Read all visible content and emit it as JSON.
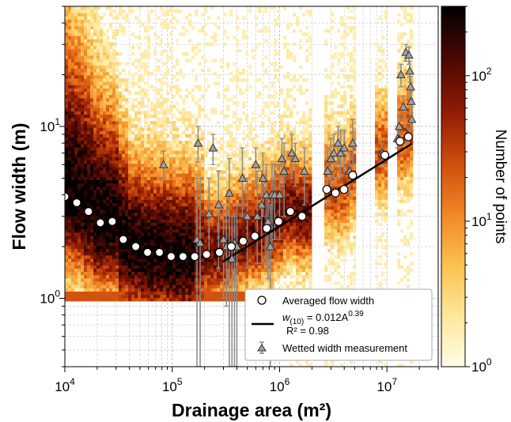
{
  "chart_data": {
    "type": "scatter",
    "xlabel": "Drainage area (m²)",
    "ylabel": "Flow width (m)",
    "x_scale": "log",
    "y_scale": "log",
    "xlim": [
      10000,
      30000000
    ],
    "ylim": [
      0.4,
      50
    ],
    "grid": true,
    "x_ticks": [
      {
        "value": 10000,
        "base": "10",
        "exp": "4"
      },
      {
        "value": 100000,
        "base": "10",
        "exp": "5"
      },
      {
        "value": 1000000,
        "base": "10",
        "exp": "6"
      },
      {
        "value": 10000000,
        "base": "10",
        "exp": "7"
      }
    ],
    "y_ticks": [
      {
        "value": 1,
        "base": "10",
        "exp": "0"
      },
      {
        "value": 10,
        "base": "10",
        "exp": "1"
      }
    ],
    "colorbar": {
      "label": "Number of points",
      "scale": "log",
      "range": [
        1,
        300
      ],
      "colors": [
        "#fffde6",
        "#fde79a",
        "#fbbf4f",
        "#f18424",
        "#cc4a0c",
        "#8c1a04",
        "#4a0802",
        "#000000"
      ],
      "ticks": [
        {
          "value": 1,
          "base": "10",
          "exp": "0"
        },
        {
          "value": 10,
          "base": "10",
          "exp": "1"
        },
        {
          "value": 100,
          "base": "10",
          "exp": "2"
        }
      ]
    },
    "series": [
      {
        "name": "Averaged flow width",
        "marker": "circle",
        "points": [
          [
            10000,
            3.9
          ],
          [
            12900,
            3.6
          ],
          [
            16600,
            3.2
          ],
          [
            21400,
            2.75
          ],
          [
            27600,
            2.8
          ],
          [
            35000,
            2.2
          ],
          [
            45700,
            2.0
          ],
          [
            58900,
            1.85
          ],
          [
            76000,
            1.85
          ],
          [
            97700,
            1.75
          ],
          [
            126000,
            1.75
          ],
          [
            162000,
            1.75
          ],
          [
            209000,
            1.8
          ],
          [
            275000,
            1.85
          ],
          [
            355000,
            2.0
          ],
          [
            457000,
            2.15
          ],
          [
            589000,
            2.3
          ],
          [
            759000,
            2.55
          ],
          [
            977000,
            2.8
          ],
          [
            1260000,
            3.2
          ],
          [
            1620000,
            3.0
          ],
          [
            2750000,
            4.3
          ],
          [
            3310000,
            4.1
          ],
          [
            3980000,
            4.3
          ],
          [
            4790000,
            5.2
          ],
          [
            9550000,
            6.8
          ],
          [
            13200000,
            8.2
          ],
          [
            15800000,
            8.7
          ]
        ]
      },
      {
        "name": "Wetted width measurement",
        "marker": "triangle",
        "points": [
          [
            83000,
            6.0,
            5.0,
            7.2
          ],
          [
            170000,
            2.2,
            0.4,
            5.0
          ],
          [
            174000,
            8.0,
            6.2,
            10.0
          ],
          [
            182000,
            2.1,
            0.4,
            5.0
          ],
          [
            220000,
            3.1,
            1.8,
            5.0
          ],
          [
            240000,
            7.5,
            6.0,
            9.0
          ],
          [
            270000,
            3.5,
            1.5,
            5.5
          ],
          [
            300000,
            2.2,
            1.0,
            3.5
          ],
          [
            320000,
            2.0,
            0.9,
            3.2
          ],
          [
            340000,
            4.1,
            0.4,
            6.5
          ],
          [
            360000,
            1.7,
            0.4,
            3.0
          ],
          [
            380000,
            2.1,
            0.4,
            3.0
          ],
          [
            400000,
            2.0,
            0.4,
            3.5
          ],
          [
            450000,
            5.0,
            3.0,
            7.5
          ],
          [
            500000,
            3.0,
            1.5,
            5.0
          ],
          [
            600000,
            6.0,
            4.5,
            7.5
          ],
          [
            620000,
            3.0,
            1.6,
            5.5
          ],
          [
            680000,
            3.5,
            1.6,
            5.5
          ],
          [
            700000,
            5.0,
            3.0,
            7.0
          ],
          [
            750000,
            4.0,
            1.5,
            6.0
          ],
          [
            780000,
            2.8,
            1.3,
            4.0
          ],
          [
            820000,
            2.0,
            0.4,
            3.5
          ],
          [
            850000,
            4.0,
            2.0,
            6.0
          ],
          [
            900000,
            4.0,
            2.2,
            6.0
          ],
          [
            1000000,
            4.0,
            2.2,
            6.0
          ],
          [
            1050000,
            6.5,
            4.5,
            8.5
          ],
          [
            1100000,
            5.5,
            3.0,
            8.0
          ],
          [
            1300000,
            7.0,
            5.0,
            9.0
          ],
          [
            1400000,
            6.5,
            4.5,
            8.0
          ],
          [
            1700000,
            5.5,
            3.5,
            7.5
          ],
          [
            2800000,
            5.5,
            3.5,
            7.5
          ],
          [
            3000000,
            6.5,
            4.5,
            8.5
          ],
          [
            3200000,
            7.0,
            5.0,
            9.0
          ],
          [
            3500000,
            8.0,
            6.0,
            10.0
          ],
          [
            3700000,
            7.0,
            5.0,
            9.5
          ],
          [
            4000000,
            7.5,
            5.5,
            9.5
          ],
          [
            4500000,
            5.5,
            4.0,
            7.0
          ],
          [
            4800000,
            8.0,
            6.0,
            11.0
          ],
          [
            9000000,
            7.0,
            6.0,
            8.0
          ],
          [
            12500000,
            8.5,
            7.5,
            10.0
          ],
          [
            13000000,
            10.0,
            9.0,
            11.5
          ],
          [
            13500000,
            20.0,
            17.0,
            23.0
          ],
          [
            14200000,
            13.0,
            11.0,
            15.0
          ],
          [
            15000000,
            27.0,
            24.0,
            30.0
          ],
          [
            15500000,
            9.0,
            8.0,
            10.0
          ],
          [
            16000000,
            26.0,
            23.0,
            29.0
          ],
          [
            16300000,
            21.0,
            18.0,
            24.0
          ],
          [
            16600000,
            17.0,
            14.5,
            19.5
          ],
          [
            16800000,
            14.0,
            12.0,
            16.0
          ],
          [
            17000000,
            11.0,
            9.5,
            13.0
          ]
        ]
      },
      {
        "name": "fit",
        "marker": "line",
        "eq_prefix": "w",
        "eq_sub": "(10)",
        "eq_mid": " = 0.012A",
        "eq_sup": "0.39",
        "r2": "R² = 0.98",
        "coef": 0.012,
        "exponent": 0.39,
        "x_range": [
          295000,
          17000000
        ]
      }
    ]
  }
}
